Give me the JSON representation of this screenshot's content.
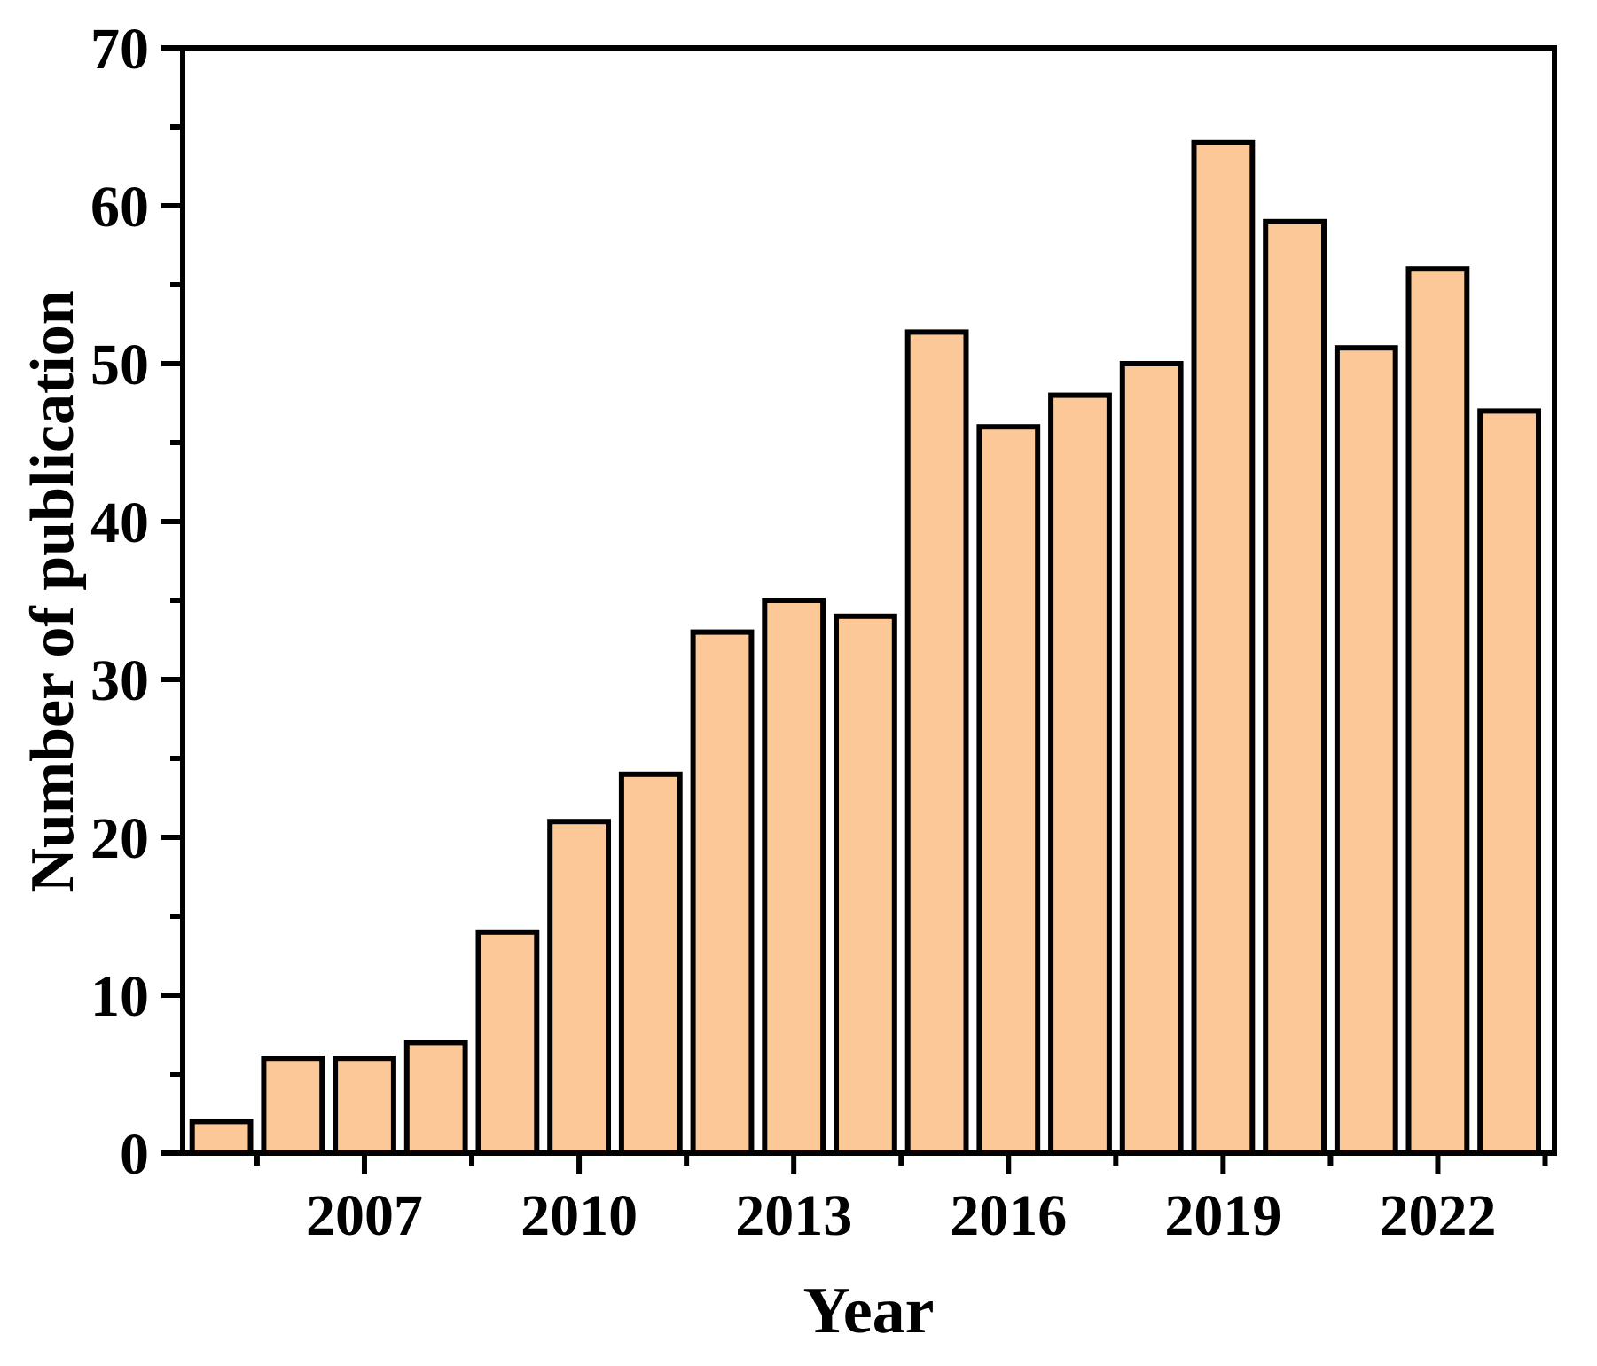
{
  "figure": {
    "background": "#FFFFFF"
  },
  "chart_data": {
    "type": "bar",
    "title": "",
    "xlabel": "Year",
    "ylabel": "Number of publication",
    "x": [
      2005,
      2006,
      2007,
      2008,
      2009,
      2010,
      2011,
      2012,
      2013,
      2014,
      2015,
      2016,
      2017,
      2018,
      2019,
      2020,
      2021,
      2022,
      2023
    ],
    "values": [
      2,
      6,
      6,
      7,
      14,
      21,
      24,
      33,
      35,
      34,
      52,
      46,
      48,
      50,
      64,
      59,
      51,
      56,
      47
    ],
    "xlim": [
      2004.46,
      2023.63
    ],
    "ylim": [
      0,
      70
    ],
    "x_major_ticks": [
      2007,
      2010,
      2013,
      2016,
      2019,
      2022
    ],
    "x_minor_ticks": [
      2005.5,
      2008.5,
      2011.5,
      2014.5,
      2017.5,
      2020.5,
      2023.5
    ],
    "y_major_ticks": [
      0,
      10,
      20,
      30,
      40,
      50,
      60,
      70
    ],
    "y_minor_ticks": [
      5,
      15,
      25,
      35,
      45,
      55,
      65
    ],
    "bar_fill": "#FCC897",
    "bar_edge": "#000000",
    "bar_width_years": 0.89,
    "axis_color": "#000000",
    "grid": false,
    "legend": null
  }
}
